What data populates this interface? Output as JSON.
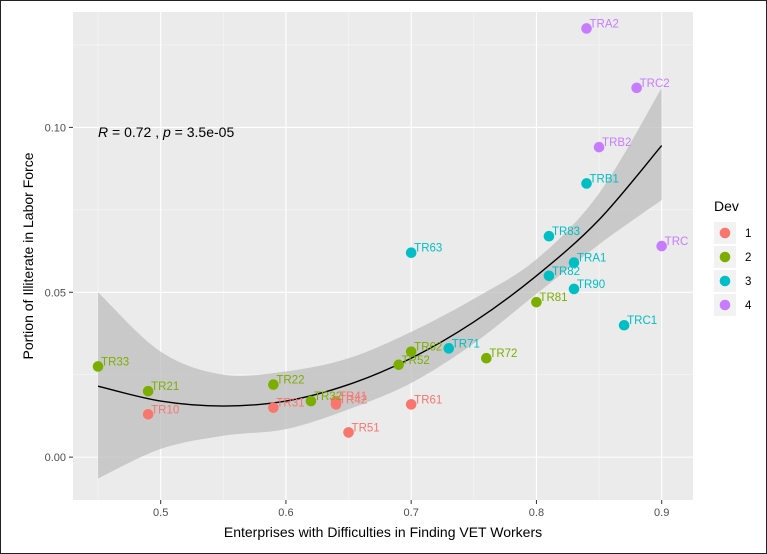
{
  "chart_data": {
    "type": "scatter",
    "xlabel": "Enterprises with Difficulties in Finding VET Workers",
    "ylabel": "Portion of Illiterate in Labor Force",
    "annotation": "R = 0.72 , p = 3.5e-05",
    "annotation_parts": {
      "r_symbol": "R",
      "r_text": " = 0.72 , ",
      "p_symbol": "p",
      "p_text": " = 3.5e-05"
    },
    "xlim": [
      0.43,
      0.925
    ],
    "ylim": [
      -0.013,
      0.135
    ],
    "x_ticks": [
      0.5,
      0.6,
      0.7,
      0.8,
      0.9
    ],
    "x_tick_labels": [
      "0.5",
      "0.6",
      "0.7",
      "0.8",
      "0.9"
    ],
    "y_ticks": [
      0.0,
      0.05,
      0.1
    ],
    "y_tick_labels": [
      "0.00",
      "0.05",
      "0.10"
    ],
    "grid": true,
    "legend": {
      "title": "Dev",
      "placement": "right",
      "items": [
        {
          "label": "1",
          "color": "#F8766D"
        },
        {
          "label": "2",
          "color": "#7CAE00"
        },
        {
          "label": "3",
          "color": "#00BFC4"
        },
        {
          "label": "4",
          "color": "#C77CFF"
        }
      ]
    },
    "colors": {
      "1": "#F8766D",
      "2": "#7CAE00",
      "3": "#00BFC4",
      "4": "#C77CFF"
    },
    "points": [
      {
        "label": "TRA2",
        "x": 0.84,
        "y": 0.13,
        "group": "4"
      },
      {
        "label": "TRC2",
        "x": 0.88,
        "y": 0.112,
        "group": "4"
      },
      {
        "label": "TRB2",
        "x": 0.85,
        "y": 0.094,
        "group": "4"
      },
      {
        "label": "TRC",
        "x": 0.9,
        "y": 0.064,
        "group": "4"
      },
      {
        "label": "TRB1",
        "x": 0.84,
        "y": 0.083,
        "group": "3"
      },
      {
        "label": "TR83",
        "x": 0.81,
        "y": 0.067,
        "group": "3"
      },
      {
        "label": "TR63",
        "x": 0.7,
        "y": 0.062,
        "group": "3"
      },
      {
        "label": "TRA1",
        "x": 0.83,
        "y": 0.059,
        "group": "3"
      },
      {
        "label": "TR82",
        "x": 0.81,
        "y": 0.055,
        "group": "3"
      },
      {
        "label": "TR90",
        "x": 0.83,
        "y": 0.051,
        "group": "3"
      },
      {
        "label": "TRC1",
        "x": 0.87,
        "y": 0.04,
        "group": "3"
      },
      {
        "label": "TR71",
        "x": 0.73,
        "y": 0.033,
        "group": "3"
      },
      {
        "label": "TR81",
        "x": 0.8,
        "y": 0.047,
        "group": "2"
      },
      {
        "label": "TR72",
        "x": 0.76,
        "y": 0.03,
        "group": "2"
      },
      {
        "label": "TR62",
        "x": 0.7,
        "y": 0.032,
        "group": "2"
      },
      {
        "label": "TR52",
        "x": 0.69,
        "y": 0.028,
        "group": "2"
      },
      {
        "label": "TR33",
        "x": 0.45,
        "y": 0.0275,
        "group": "2"
      },
      {
        "label": "TR22",
        "x": 0.59,
        "y": 0.022,
        "group": "2"
      },
      {
        "label": "TR21",
        "x": 0.49,
        "y": 0.02,
        "group": "2"
      },
      {
        "label": "TR32",
        "x": 0.62,
        "y": 0.017,
        "group": "2"
      },
      {
        "label": "TR41",
        "x": 0.64,
        "y": 0.017,
        "group": "1"
      },
      {
        "label": "TR42",
        "x": 0.64,
        "y": 0.016,
        "group": "1"
      },
      {
        "label": "TR31",
        "x": 0.59,
        "y": 0.015,
        "group": "1"
      },
      {
        "label": "TR61",
        "x": 0.7,
        "y": 0.016,
        "group": "1"
      },
      {
        "label": "TR10",
        "x": 0.49,
        "y": 0.013,
        "group": "1"
      },
      {
        "label": "TR51",
        "x": 0.65,
        "y": 0.0075,
        "group": "1"
      }
    ],
    "fit": {
      "type": "loess",
      "x": [
        0.45,
        0.5,
        0.55,
        0.6,
        0.65,
        0.7,
        0.75,
        0.8,
        0.85,
        0.9
      ],
      "y": [
        0.0215,
        0.017,
        0.0155,
        0.017,
        0.022,
        0.03,
        0.041,
        0.055,
        0.072,
        0.0945
      ],
      "ci_upper": [
        0.05,
        0.032,
        0.025,
        0.026,
        0.03,
        0.038,
        0.048,
        0.06,
        0.08,
        0.112
      ],
      "ci_lower": [
        -0.0065,
        0.0025,
        0.0065,
        0.0085,
        0.0145,
        0.0225,
        0.0345,
        0.0495,
        0.0645,
        0.078
      ]
    }
  }
}
